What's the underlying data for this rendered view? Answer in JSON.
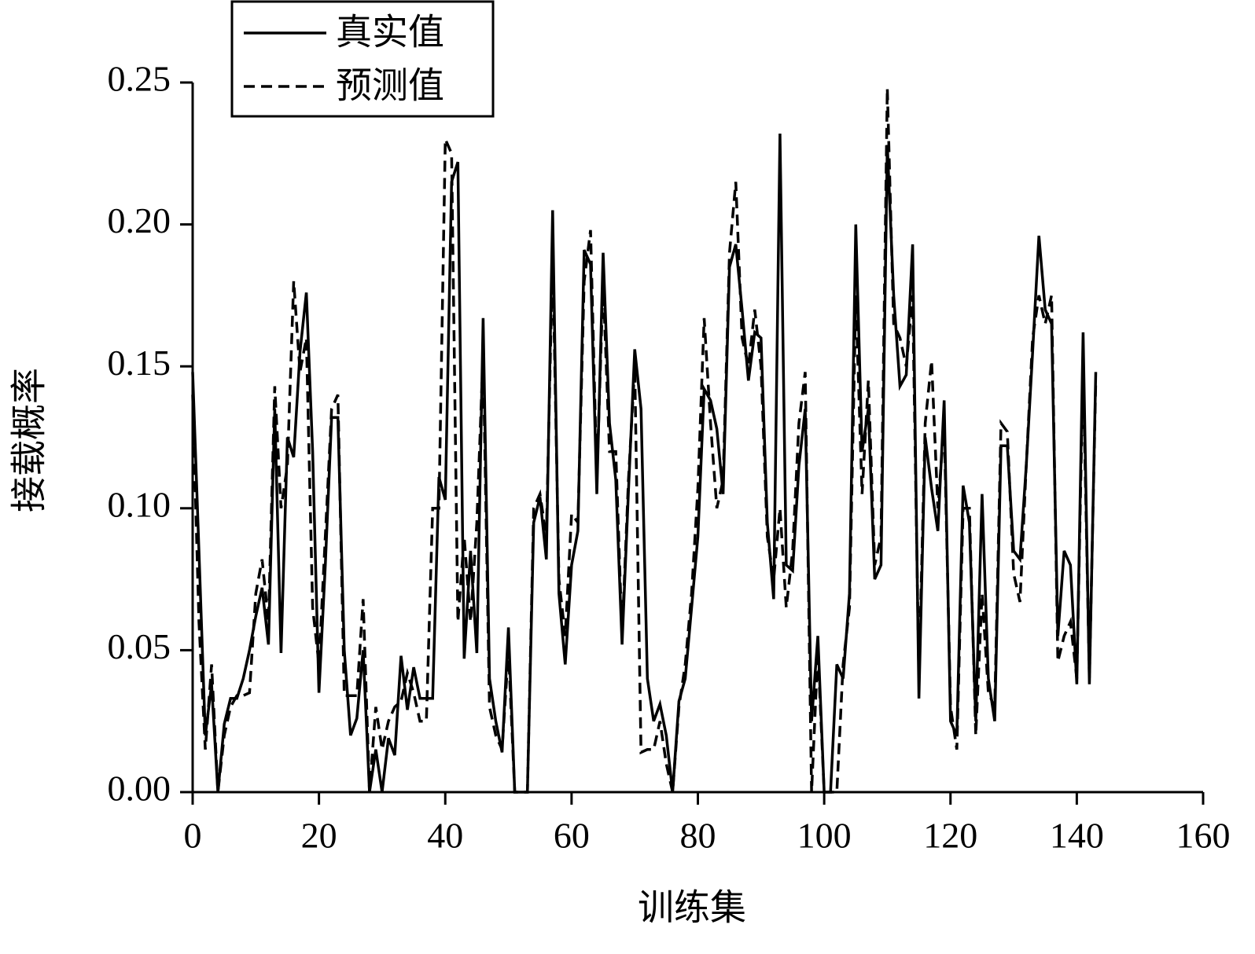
{
  "chart_data": {
    "type": "line",
    "xlabel": "训练集",
    "ylabel": "接载概率",
    "x": [
      0,
      1,
      2,
      3,
      4,
      5,
      6,
      7,
      8,
      9,
      10,
      11,
      12,
      13,
      14,
      15,
      16,
      17,
      18,
      19,
      20,
      21,
      22,
      23,
      24,
      25,
      26,
      27,
      28,
      29,
      30,
      31,
      32,
      33,
      34,
      35,
      36,
      37,
      38,
      39,
      40,
      41,
      42,
      43,
      44,
      45,
      46,
      47,
      48,
      49,
      50,
      51,
      52,
      53,
      54,
      55,
      56,
      57,
      58,
      59,
      60,
      61,
      62,
      63,
      64,
      65,
      66,
      67,
      68,
      69,
      70,
      71,
      72,
      73,
      74,
      75,
      76,
      77,
      78,
      79,
      80,
      81,
      82,
      83,
      84,
      85,
      86,
      87,
      88,
      89,
      90,
      91,
      92,
      93,
      94,
      95,
      96,
      97,
      98,
      99,
      100,
      101,
      102,
      103,
      104,
      105,
      106,
      107,
      108,
      109,
      110,
      111,
      112,
      113,
      114,
      115,
      116,
      117,
      118,
      119,
      120,
      121,
      122,
      123,
      124,
      125,
      126,
      127,
      128,
      129,
      130,
      131,
      132,
      133,
      134,
      135,
      136,
      137,
      138,
      139,
      140,
      141,
      142,
      143
    ],
    "series": [
      {
        "name": "真实值",
        "color": "#000000",
        "line_style": "solid",
        "values": [
          0.148,
          0.085,
          0.02,
          0.038,
          0.0,
          0.024,
          0.033,
          0.033,
          0.04,
          0.05,
          0.062,
          0.072,
          0.052,
          0.135,
          0.049,
          0.125,
          0.118,
          0.155,
          0.176,
          0.12,
          0.035,
          0.08,
          0.132,
          0.132,
          0.05,
          0.02,
          0.026,
          0.05,
          0.0,
          0.015,
          0.0,
          0.019,
          0.013,
          0.048,
          0.029,
          0.044,
          0.033,
          0.033,
          0.033,
          0.111,
          0.103,
          0.215,
          0.222,
          0.047,
          0.085,
          0.049,
          0.167,
          0.04,
          0.025,
          0.014,
          0.058,
          0.0,
          0.0,
          0.0,
          0.095,
          0.104,
          0.082,
          0.205,
          0.07,
          0.045,
          0.08,
          0.092,
          0.191,
          0.186,
          0.105,
          0.19,
          0.13,
          0.11,
          0.052,
          0.106,
          0.156,
          0.135,
          0.04,
          0.025,
          0.031,
          0.02,
          0.0,
          0.032,
          0.04,
          0.065,
          0.09,
          0.142,
          0.138,
          0.128,
          0.105,
          0.185,
          0.193,
          0.17,
          0.145,
          0.162,
          0.16,
          0.095,
          0.068,
          0.232,
          0.08,
          0.078,
          0.115,
          0.135,
          0.025,
          0.055,
          0.0,
          0.0,
          0.045,
          0.04,
          0.07,
          0.2,
          0.12,
          0.135,
          0.075,
          0.08,
          0.228,
          0.175,
          0.143,
          0.147,
          0.193,
          0.033,
          0.125,
          0.107,
          0.092,
          0.138,
          0.025,
          0.02,
          0.108,
          0.095,
          0.025,
          0.105,
          0.04,
          0.025,
          0.122,
          0.122,
          0.085,
          0.082,
          0.115,
          0.155,
          0.196,
          0.17,
          0.165,
          0.055,
          0.085,
          0.08,
          0.038,
          0.162,
          0.038,
          0.148
        ]
      },
      {
        "name": "预测值",
        "color": "#000000",
        "line_style": "dashed",
        "values": [
          0.14,
          0.06,
          0.015,
          0.045,
          0.0,
          0.02,
          0.03,
          0.034,
          0.034,
          0.035,
          0.07,
          0.082,
          0.06,
          0.143,
          0.1,
          0.115,
          0.18,
          0.148,
          0.16,
          0.065,
          0.045,
          0.09,
          0.135,
          0.14,
          0.034,
          0.034,
          0.034,
          0.068,
          0.0,
          0.03,
          0.015,
          0.025,
          0.03,
          0.032,
          0.042,
          0.035,
          0.025,
          0.025,
          0.1,
          0.1,
          0.23,
          0.225,
          0.06,
          0.09,
          0.06,
          0.095,
          0.155,
          0.03,
          0.02,
          0.015,
          0.05,
          0.0,
          0.0,
          0.0,
          0.1,
          0.105,
          0.09,
          0.19,
          0.075,
          0.055,
          0.098,
          0.095,
          0.18,
          0.198,
          0.11,
          0.18,
          0.12,
          0.12,
          0.055,
          0.11,
          0.15,
          0.014,
          0.015,
          0.015,
          0.025,
          0.01,
          0.0,
          0.03,
          0.045,
          0.07,
          0.107,
          0.167,
          0.13,
          0.1,
          0.11,
          0.19,
          0.215,
          0.16,
          0.15,
          0.17,
          0.15,
          0.09,
          0.075,
          0.1,
          0.065,
          0.085,
          0.13,
          0.148,
          0.0,
          0.05,
          0.0,
          0.0,
          0.0,
          0.045,
          0.065,
          0.175,
          0.105,
          0.145,
          0.08,
          0.09,
          0.248,
          0.165,
          0.16,
          0.15,
          0.175,
          0.04,
          0.13,
          0.152,
          0.1,
          0.13,
          0.03,
          0.015,
          0.1,
          0.1,
          0.02,
          0.07,
          0.035,
          0.03,
          0.13,
          0.127,
          0.077,
          0.067,
          0.115,
          0.16,
          0.175,
          0.165,
          0.175,
          0.046,
          0.055,
          0.06,
          0.04,
          0.15,
          0.04,
          0.145
        ]
      }
    ],
    "xlim": [
      0,
      160
    ],
    "xticks": [
      0,
      20,
      40,
      60,
      80,
      100,
      120,
      140,
      160
    ],
    "ylim": [
      0,
      0.25
    ],
    "yticks": [
      {
        "value": 0,
        "label": "0.00"
      },
      {
        "value": 0.05,
        "label": "0.05"
      },
      {
        "value": 0.1,
        "label": "0.10"
      },
      {
        "value": 0.15,
        "label": "0.15"
      },
      {
        "value": 0.2,
        "label": "0.20"
      },
      {
        "value": 0.25,
        "label": "0.25"
      }
    ],
    "legend": "top-left"
  }
}
